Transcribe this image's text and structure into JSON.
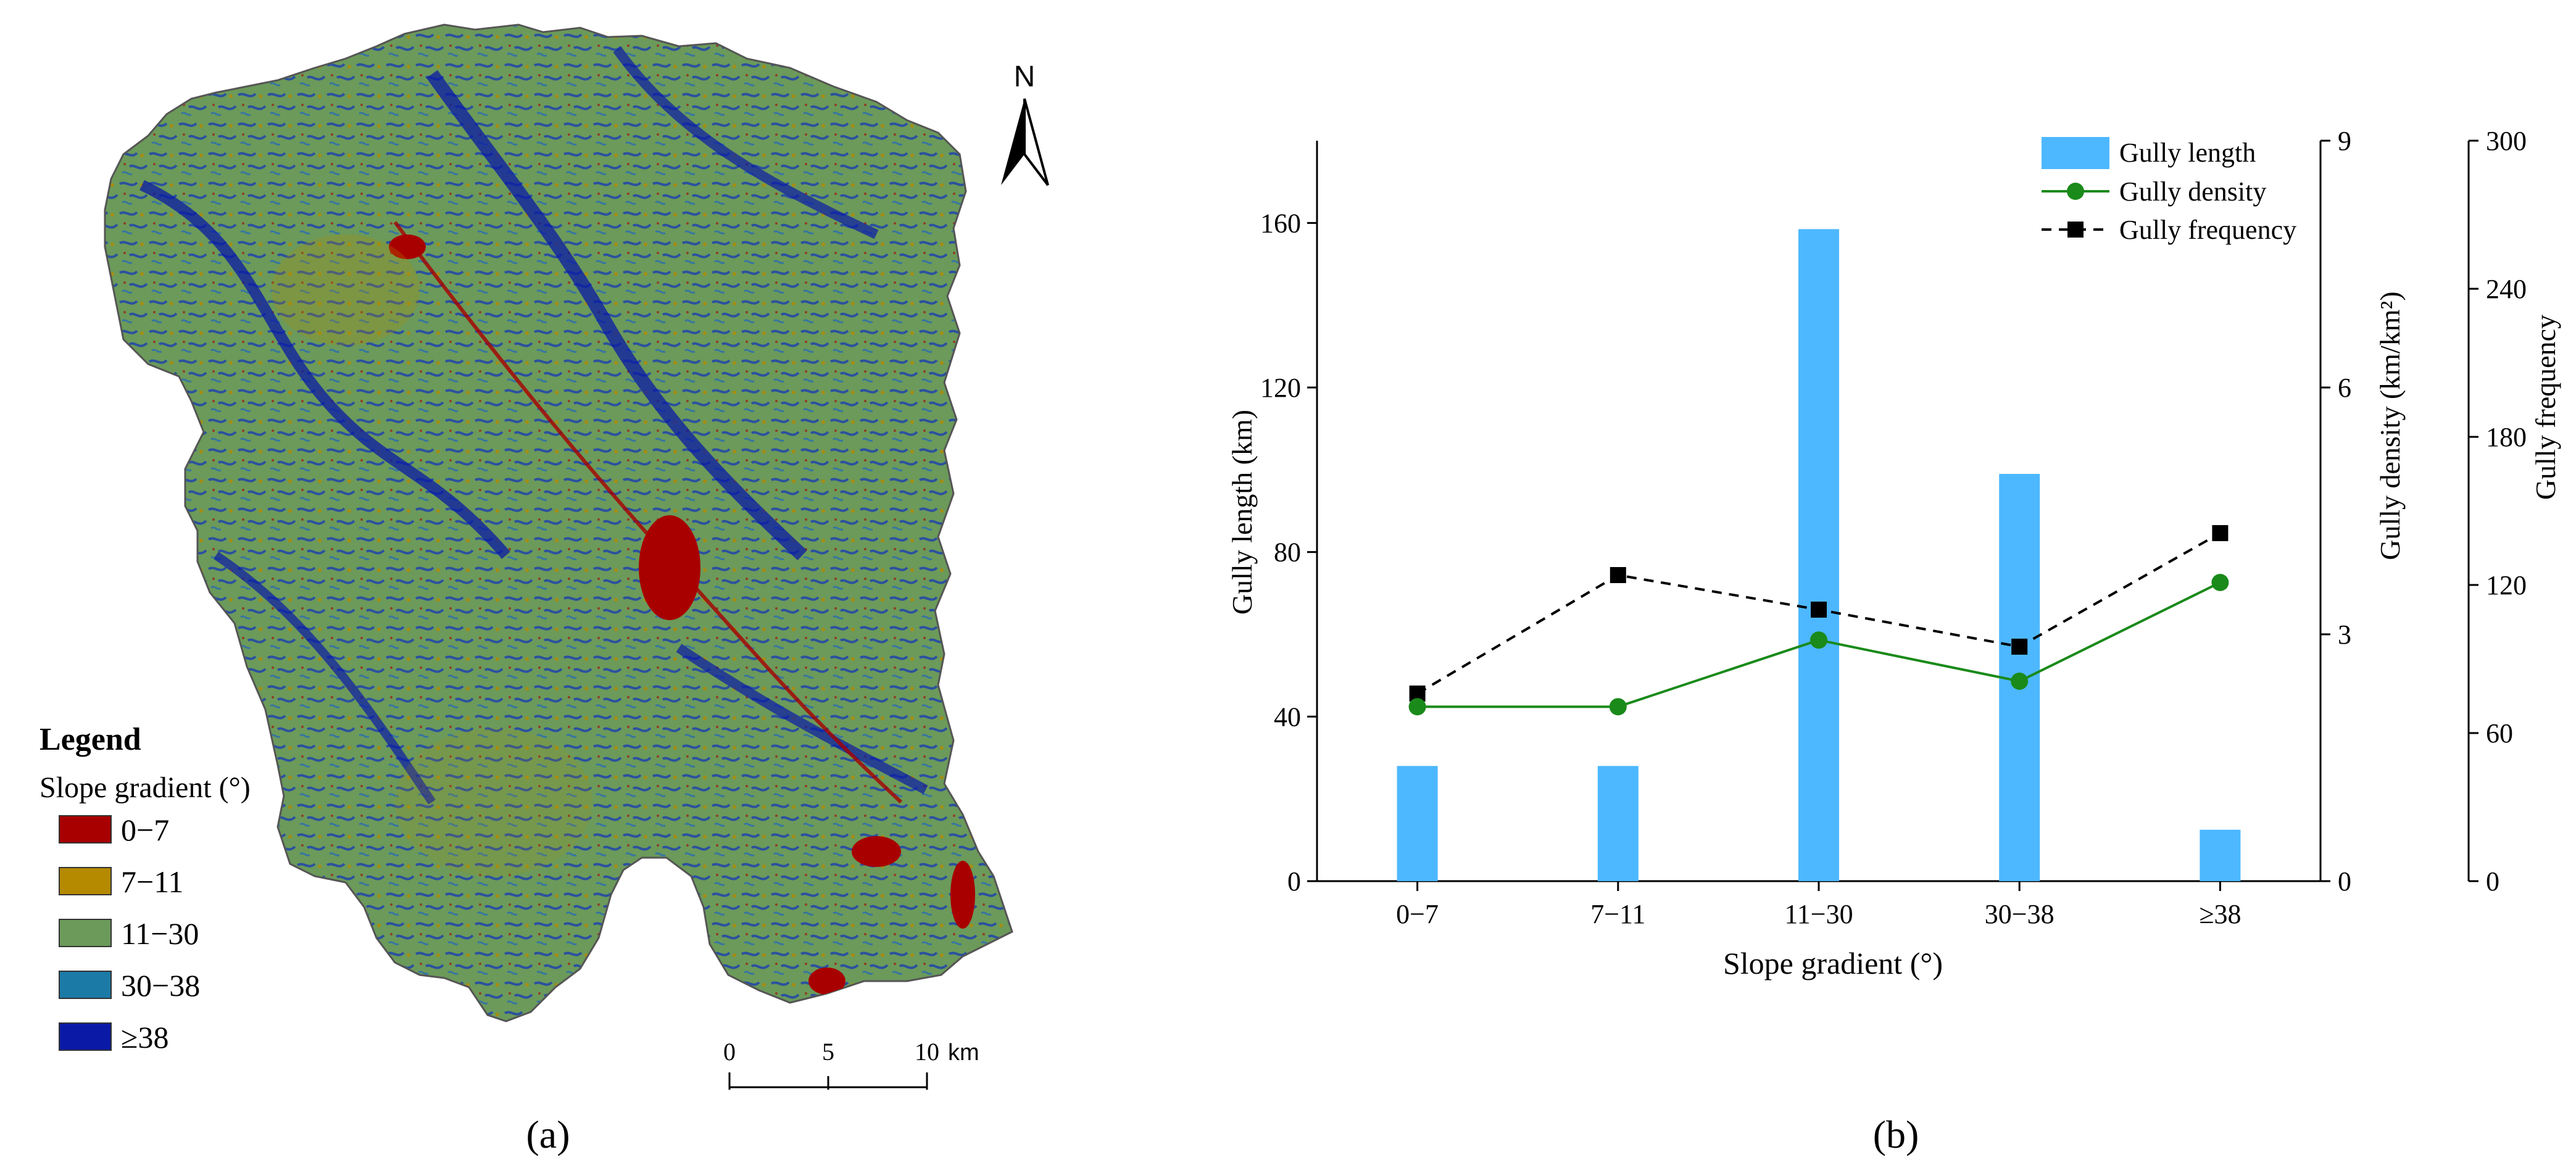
{
  "panel_a": {
    "label": "(a)",
    "legend": {
      "title": "Legend",
      "subtitle": "Slope gradient (°)",
      "items": [
        {
          "label": "0−7",
          "color": "#a80000"
        },
        {
          "label": "7−11",
          "color": "#b58a00"
        },
        {
          "label": "11−30",
          "color": "#6b9a5a"
        },
        {
          "label": "30−38",
          "color": "#1b7aa6"
        },
        {
          "label": "≥38",
          "color": "#0a1aa6"
        }
      ]
    },
    "north_arrow": {
      "label": "N",
      "icon": "north-arrow-icon"
    },
    "scale_bar": {
      "ticks": [
        "0",
        "5",
        "10"
      ],
      "unit": "km"
    }
  },
  "panel_b": {
    "label": "(b)"
  },
  "chart_data": {
    "type": "bar",
    "categories": [
      "0−7",
      "7−11",
      "11−30",
      "30−38",
      "≥38"
    ],
    "xlabel": "Slope gradient (°)",
    "series": [
      {
        "name": "Gully length",
        "type": "bar",
        "axis": "left",
        "color": "#4db8ff",
        "values": [
          28,
          28,
          158.5,
          99,
          12.5
        ]
      },
      {
        "name": "Gully density",
        "type": "line",
        "axis": "right1",
        "color": "#1a8a1a",
        "marker": "circle",
        "values": [
          2.12,
          2.12,
          2.93,
          2.43,
          3.63
        ]
      },
      {
        "name": "Gully frequency",
        "type": "line",
        "axis": "right2",
        "color": "#000000",
        "marker": "square",
        "dash": "dashed",
        "values": [
          76,
          124,
          110,
          95,
          141
        ]
      }
    ],
    "axes": {
      "left": {
        "label": "Gully length (km)",
        "ylim": [
          0,
          180
        ],
        "ticks": [
          0,
          40,
          80,
          120,
          160
        ]
      },
      "right1": {
        "label": "Gully density (km/km²)",
        "ylim": [
          0,
          9
        ],
        "ticks": [
          0,
          3,
          6,
          9
        ]
      },
      "right2": {
        "label": "Gully frequency",
        "ylim": [
          0,
          300
        ],
        "ticks": [
          0,
          60,
          120,
          180,
          240,
          300
        ]
      }
    },
    "legend_position": "top-right",
    "grid": false
  }
}
